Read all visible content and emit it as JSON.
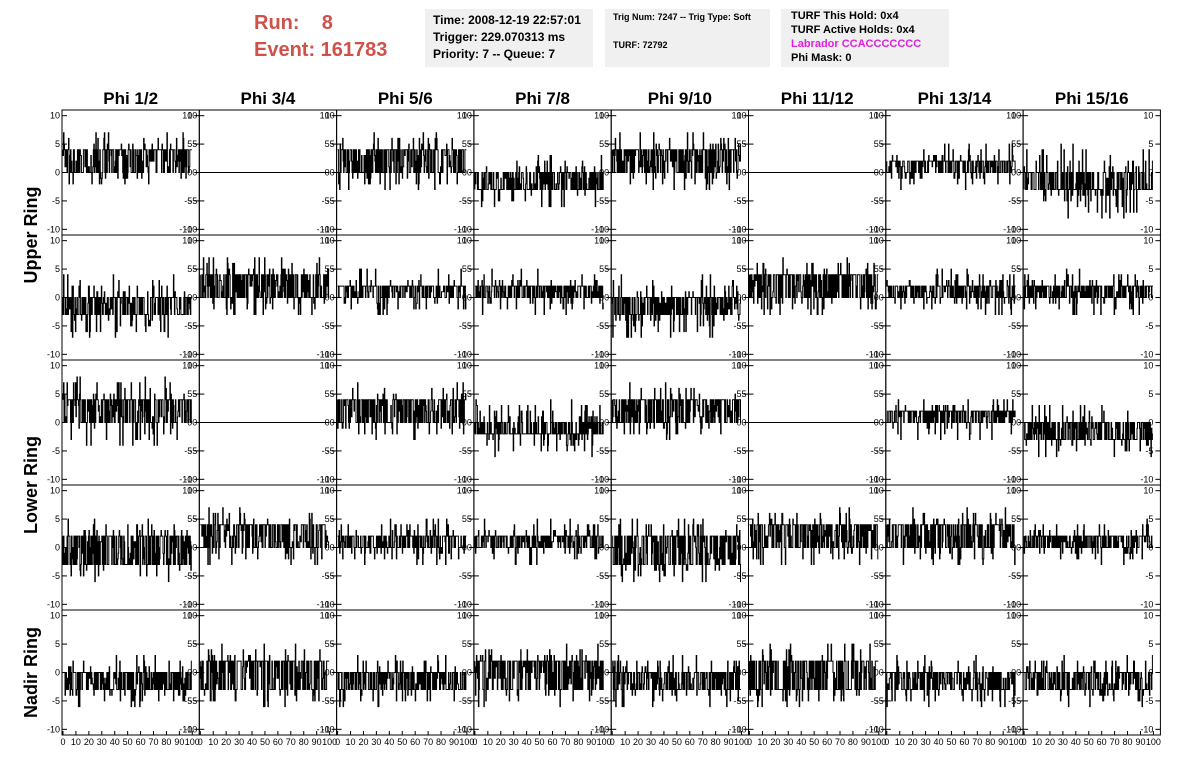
{
  "header": {
    "run_label": "Run:    8",
    "event_label": "Event: 161783",
    "box1": {
      "time": "Time: 2008-12-19 22:57:01",
      "trigger": "Trigger: 229.070313 ms",
      "priority": "Priority: 7 -- Queue: 7"
    },
    "box2": {
      "trig_num": "Trig Num: 7247 -- Trig Type: Soft",
      "turf": "TURF: 72792"
    },
    "box3": {
      "this_hold": "TURF This Hold: 0x4",
      "active_holds": "TURF Active Holds: 0x4",
      "labrador": "Labrador CCACCCCCCC",
      "phi_mask": "Phi Mask: 0"
    }
  },
  "colors": {
    "header_text": "#d0504a",
    "labrador_text": "#e020e0",
    "info_box_bg": "#f0f0f0",
    "trace": "#000000"
  },
  "phi_labels": [
    "Phi 1/2",
    "Phi 3/4",
    "Phi 5/6",
    "Phi 7/8",
    "Phi 9/10",
    "Phi 11/12",
    "Phi 13/14",
    "Phi 15/16"
  ],
  "ring_labels": [
    "Upper Ring",
    "Lower Ring",
    "Nadir Ring"
  ],
  "chart_data": {
    "type": "line",
    "grid": false,
    "rows": 5,
    "columns": 8,
    "xlim": [
      0,
      100
    ],
    "ylim": [
      -11,
      11
    ],
    "x_tick_labels": [
      "0",
      "10",
      "20",
      "30",
      "40",
      "50",
      "60",
      "70",
      "80",
      "90",
      "100"
    ],
    "y_tick_labels": [
      "10",
      "5",
      "0",
      "-5",
      "-10"
    ],
    "y_ticks": [
      10,
      5,
      0,
      -5,
      -10
    ],
    "x_ticks": [
      0,
      10,
      20,
      30,
      40,
      50,
      60,
      70,
      80,
      90,
      100
    ],
    "panels": [
      [
        {
          "level": 4,
          "low": 0,
          "amp": 3
        },
        {
          "flat": true
        },
        {
          "level": 4,
          "low": 0,
          "amp": 3
        },
        {
          "level": -3,
          "low": 0,
          "amp": 3
        },
        {
          "level": 4,
          "low": 0,
          "amp": 3
        },
        {
          "flat": true
        },
        {
          "level": 2,
          "low": 0,
          "amp": 3
        },
        {
          "level": -3,
          "low": 0,
          "amp": 5
        }
      ],
      [
        {
          "level": 0,
          "low": -3,
          "amp": 4
        },
        {
          "level": 4,
          "low": 0,
          "amp": 3
        },
        {
          "level": 2,
          "low": 0,
          "amp": 3
        },
        {
          "level": 2,
          "low": 0,
          "amp": 3
        },
        {
          "level": 0,
          "low": -3,
          "amp": 4
        },
        {
          "level": 4,
          "low": 0,
          "amp": 3
        },
        {
          "level": 2,
          "low": 0,
          "amp": 3
        },
        {
          "level": 2,
          "low": 0,
          "amp": 3
        }
      ],
      [
        {
          "level": 4,
          "low": 0,
          "amp": 4
        },
        {
          "flat": true
        },
        {
          "level": 4,
          "low": 0,
          "amp": 3
        },
        {
          "level": -2,
          "low": 0,
          "amp": 4
        },
        {
          "level": 4,
          "low": 0,
          "amp": 3
        },
        {
          "flat": true
        },
        {
          "level": 2,
          "low": 0,
          "amp": 3
        },
        {
          "level": -3,
          "low": 0,
          "amp": 3
        }
      ],
      [
        {
          "level": 2,
          "low": -3,
          "amp": 3
        },
        {
          "level": 4,
          "low": 0,
          "amp": 3
        },
        {
          "level": 2,
          "low": 0,
          "amp": 3
        },
        {
          "level": 2,
          "low": 0,
          "amp": 3
        },
        {
          "level": 2,
          "low": -3,
          "amp": 3
        },
        {
          "level": 4,
          "low": 0,
          "amp": 3
        },
        {
          "level": 4,
          "low": 0,
          "amp": 3
        },
        {
          "level": 2,
          "low": 0,
          "amp": 3
        }
      ],
      [
        {
          "level": 0,
          "low": -3,
          "amp": 3
        },
        {
          "level": 2,
          "low": -3,
          "amp": 3
        },
        {
          "level": 0,
          "low": -3,
          "amp": 3
        },
        {
          "level": 2,
          "low": -3,
          "amp": 3
        },
        {
          "level": 0,
          "low": -3,
          "amp": 3
        },
        {
          "level": 2,
          "low": -3,
          "amp": 3
        },
        {
          "level": 0,
          "low": -3,
          "amp": 3
        },
        {
          "level": 0,
          "low": -3,
          "amp": 3
        }
      ]
    ]
  }
}
